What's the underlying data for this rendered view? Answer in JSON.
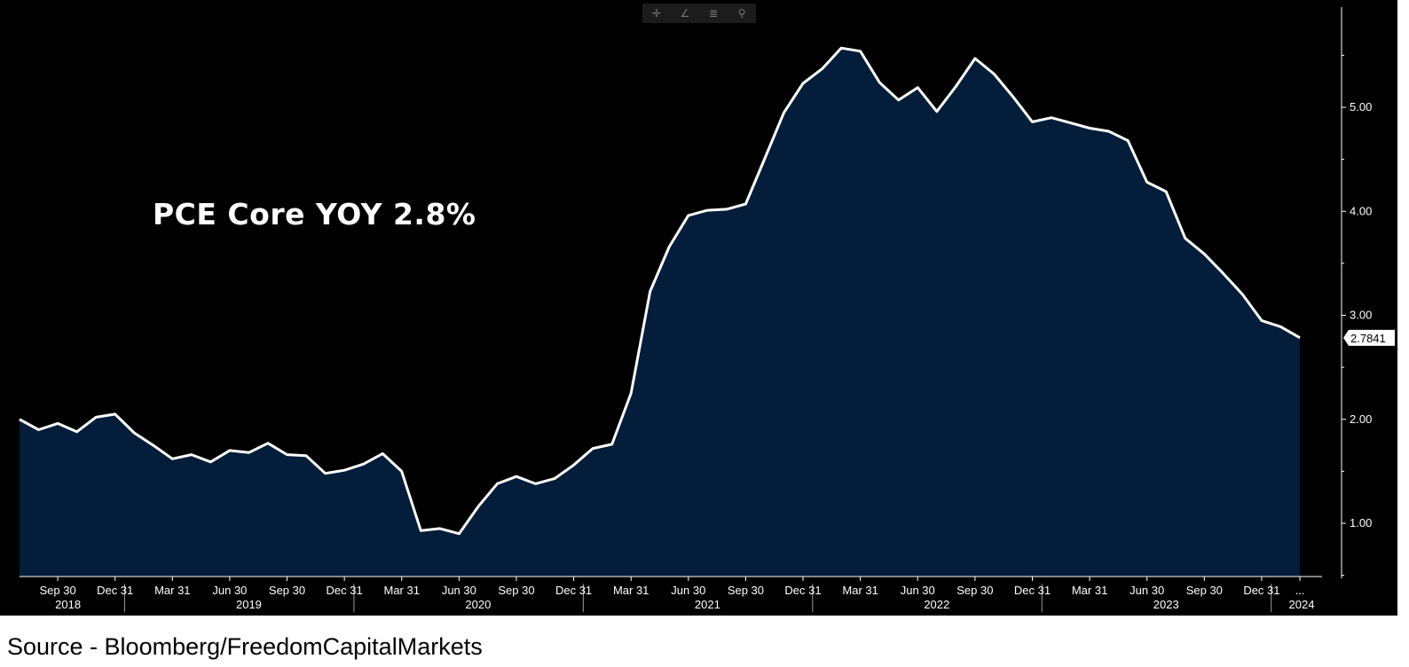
{
  "annotation": "PCE Core YOY 2.8%",
  "source": "Source - Bloomberg/FreedomCapitalMarkets",
  "toolbar": [
    {
      "name": "crosshair-icon",
      "glyph": "✛"
    },
    {
      "name": "draw-line-icon",
      "glyph": "∠"
    },
    {
      "name": "list-icon",
      "glyph": "≣"
    },
    {
      "name": "zoom-icon",
      "glyph": "⚲"
    }
  ],
  "colors": {
    "background": "#000000",
    "area_fill": "#041d3a",
    "line": "#ffffff",
    "text": "#ffffff"
  },
  "chart_data": {
    "type": "area",
    "title": "",
    "last_value_label": "2.7841",
    "ylim": [
      0.5,
      5.75
    ],
    "y_ticks": [
      "1.00",
      "2.00",
      "3.00",
      "4.00",
      "5.00"
    ],
    "x_tick_labels": [
      "Sep 30",
      "Dec 31",
      "Mar 31",
      "Jun 30",
      "Sep 30",
      "Dec 31",
      "Mar 31",
      "Jun 30",
      "Sep 30",
      "Dec 31",
      "Mar 31",
      "Jun 30",
      "Sep 30",
      "Dec 31",
      "Mar 31",
      "Jun 30",
      "Sep 30",
      "Dec 31",
      "Mar 31",
      "Jun 30",
      "Sep 30",
      "Dec 31",
      "..."
    ],
    "year_labels": [
      "2018",
      "2019",
      "2020",
      "2021",
      "2022",
      "2023",
      "2024"
    ],
    "series": [
      {
        "x": [
          "2018-07",
          "2018-08",
          "2018-09",
          "2018-10",
          "2018-11",
          "2018-12",
          "2019-01",
          "2019-02",
          "2019-03",
          "2019-04",
          "2019-05",
          "2019-06",
          "2019-07",
          "2019-08",
          "2019-09",
          "2019-10",
          "2019-11",
          "2019-12",
          "2020-01",
          "2020-02",
          "2020-03",
          "2020-04",
          "2020-05",
          "2020-06",
          "2020-07",
          "2020-08",
          "2020-09",
          "2020-10",
          "2020-11",
          "2020-12",
          "2021-01",
          "2021-02",
          "2021-03",
          "2021-04",
          "2021-05",
          "2021-06",
          "2021-07",
          "2021-08",
          "2021-09",
          "2021-10",
          "2021-11",
          "2021-12",
          "2022-01",
          "2022-02",
          "2022-03",
          "2022-04",
          "2022-05",
          "2022-06",
          "2022-07",
          "2022-08",
          "2022-09",
          "2022-10",
          "2022-11",
          "2022-12",
          "2023-01",
          "2023-02",
          "2023-03",
          "2023-04",
          "2023-05",
          "2023-06",
          "2023-07",
          "2023-08",
          "2023-09",
          "2023-10",
          "2023-11",
          "2023-12",
          "2024-01",
          "2024-02"
        ],
        "values": [
          2.0,
          1.9,
          1.96,
          1.88,
          2.02,
          2.05,
          1.87,
          1.75,
          1.62,
          1.66,
          1.59,
          1.7,
          1.68,
          1.77,
          1.66,
          1.65,
          1.48,
          1.51,
          1.57,
          1.67,
          1.5,
          0.93,
          0.95,
          0.9,
          1.16,
          1.38,
          1.45,
          1.38,
          1.43,
          1.56,
          1.72,
          1.76,
          2.25,
          3.23,
          3.66,
          3.96,
          4.01,
          4.02,
          4.07,
          4.51,
          4.95,
          5.23,
          5.37,
          5.57,
          5.54,
          5.24,
          5.07,
          5.19,
          4.96,
          5.2,
          5.47,
          5.32,
          5.1,
          4.86,
          4.9,
          4.85,
          4.8,
          4.77,
          4.68,
          4.28,
          4.19,
          3.74,
          3.59,
          3.4,
          3.2,
          2.95,
          2.89,
          2.7841
        ]
      }
    ]
  }
}
